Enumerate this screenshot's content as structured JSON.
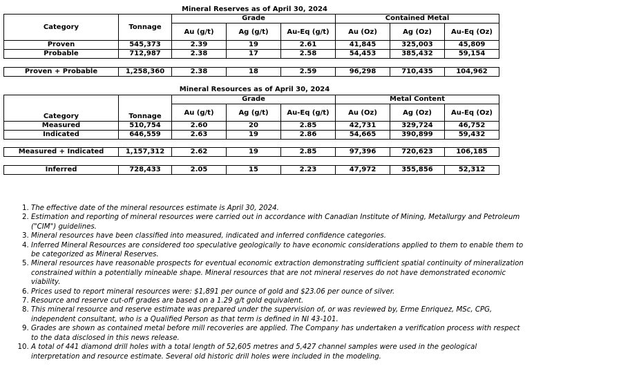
{
  "reserves": {
    "title": "Mineral Reserves as of April 30, 2024",
    "headers": {
      "category": "Category",
      "tonnage": "Tonnage",
      "grade": "Grade",
      "metal": "Contained Metal",
      "au_gt": "Au (g/t)",
      "ag_gt": "Ag (g/t)",
      "aueq_gt": "Au-Eq (g/t)",
      "au_oz": "Au (Oz)",
      "ag_oz": "Ag (Oz)",
      "aueq_oz": "Au-Eq (Oz)"
    },
    "rows": [
      [
        "Proven",
        "545,373",
        "2.39",
        "19",
        "2.61",
        "41,845",
        "325,003",
        "45,809"
      ],
      [
        "Probable",
        "712,987",
        "2.38",
        "17",
        "2.58",
        "54,453",
        "385,432",
        "59,154"
      ]
    ],
    "total": [
      "Proven + Probable",
      "1,258,360",
      "2.38",
      "18",
      "2.59",
      "96,298",
      "710,435",
      "104,962"
    ]
  },
  "resources": {
    "title": "Mineral Resources as of April 30, 2024",
    "headers": {
      "category": "Category",
      "tonnage": "Tonnage",
      "grade": "Grade",
      "metal": "Metal Content",
      "au_gt": "Au (g/t)",
      "ag_gt": "Ag (g/t)",
      "aueq_gt": "Au-Eq (g/t)",
      "au_oz": "Au (Oz)",
      "ag_oz": "Ag (Oz)",
      "aueq_oz": "Au-Eq (Oz)"
    },
    "rows": [
      [
        "Measured",
        "510,754",
        "2.60",
        "20",
        "2.85",
        "42,731",
        "329,724",
        "46,752"
      ],
      [
        "Indicated",
        "646,559",
        "2.63",
        "19",
        "2.86",
        "54,665",
        "390,899",
        "59,432"
      ]
    ],
    "total": [
      "Measured + Indicated",
      "1,157,312",
      "2.62",
      "19",
      "2.85",
      "97,396",
      "720,623",
      "106,185"
    ],
    "inferred": [
      "Inferred",
      "728,433",
      "2.05",
      "15",
      "2.23",
      "47,972",
      "355,856",
      "52,312"
    ]
  },
  "notes": [
    "The effective date of the mineral resources estimate is April 30, 2024.",
    "Estimation and reporting of mineral resources were carried out in accordance with Canadian Institute of Mining, Metallurgy and Petroleum (\"CIM\") guidelines.",
    "Mineral resources have been classified into measured, indicated and inferred confidence categories.",
    "Inferred Mineral Resources are considered too speculative geologically to have economic considerations applied to them to enable them to be categorized as Mineral Reserves.",
    "Mineral resources have reasonable prospects for eventual economic extraction demonstrating sufficient spatial continuity of mineralization constrained within a potentially mineable shape. Mineral resources that are not mineral reserves do not have demonstrated economic viability.",
    "Prices used to report mineral resources were: $1,891 per ounce of gold and $23.06 per ounce of silver.",
    "Resource and reserve cut-off grades are based on a 1.29 g/t gold equivalent.",
    "This mineral resource and reserve estimate was prepared under the supervision of, or was reviewed by, Erme Enriquez, MSc, CPG, independent consultant, who is a Qualified Person as that term is defined in NI 43-101.",
    "Grades are shown as contained metal before mill recoveries are applied. The Company has undertaken a verification process with respect to the data disclosed in this news release.",
    "A total of 441 diamond drill holes with a total length of 52,605 metres and 5,427 channel samples were used in the geological interpretation and resource estimate. Several old historic drill holes were included in the modeling."
  ]
}
